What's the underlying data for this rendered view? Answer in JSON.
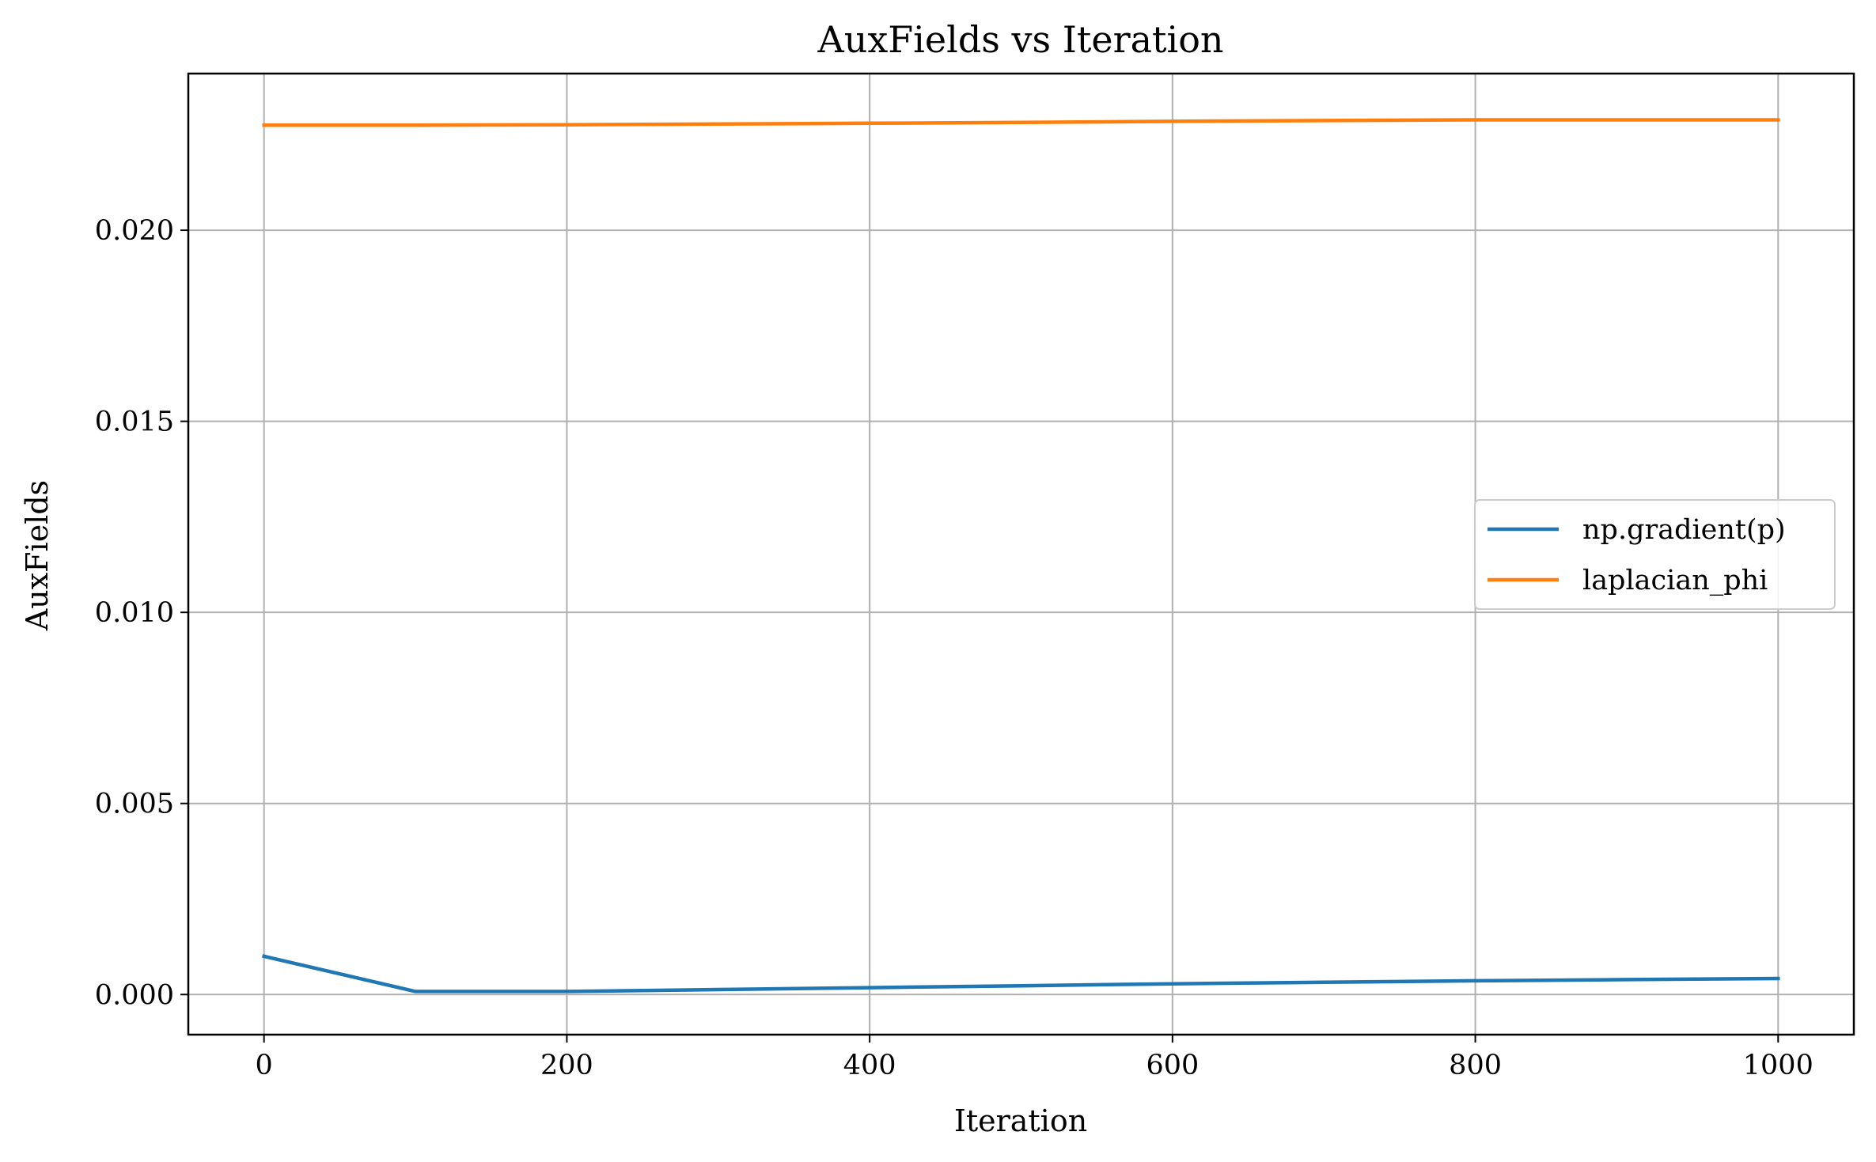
{
  "chart_data": {
    "type": "line",
    "title": "AuxFields vs Iteration",
    "xlabel": "Iteration",
    "ylabel": "AuxFields",
    "xlim": [
      -50,
      1050
    ],
    "ylim": [
      -0.00105,
      0.0241
    ],
    "xticks": [
      0,
      200,
      400,
      600,
      800,
      1000
    ],
    "xtick_labels": [
      "0",
      "200",
      "400",
      "600",
      "800",
      "1000"
    ],
    "yticks": [
      0.0,
      0.005,
      0.01,
      0.015,
      0.02
    ],
    "ytick_labels": [
      "0.000",
      "0.005",
      "0.010",
      "0.015",
      "0.020"
    ],
    "grid": true,
    "legend_position": "center-right",
    "x": [
      0,
      100,
      200,
      300,
      400,
      500,
      600,
      700,
      800,
      900,
      1000
    ],
    "series": [
      {
        "name": "np.gradient(p)",
        "color": "#1f77b4",
        "values": [
          0.001,
          8e-05,
          8e-05,
          0.00013,
          0.00018,
          0.00023,
          0.00028,
          0.00032,
          0.00036,
          0.00039,
          0.00042
        ]
      },
      {
        "name": "laplacian_phi",
        "color": "#ff7f0e",
        "values": [
          0.02275,
          0.02275,
          0.02276,
          0.02278,
          0.0228,
          0.02282,
          0.02285,
          0.02287,
          0.02289,
          0.02289,
          0.02289
        ]
      }
    ]
  }
}
